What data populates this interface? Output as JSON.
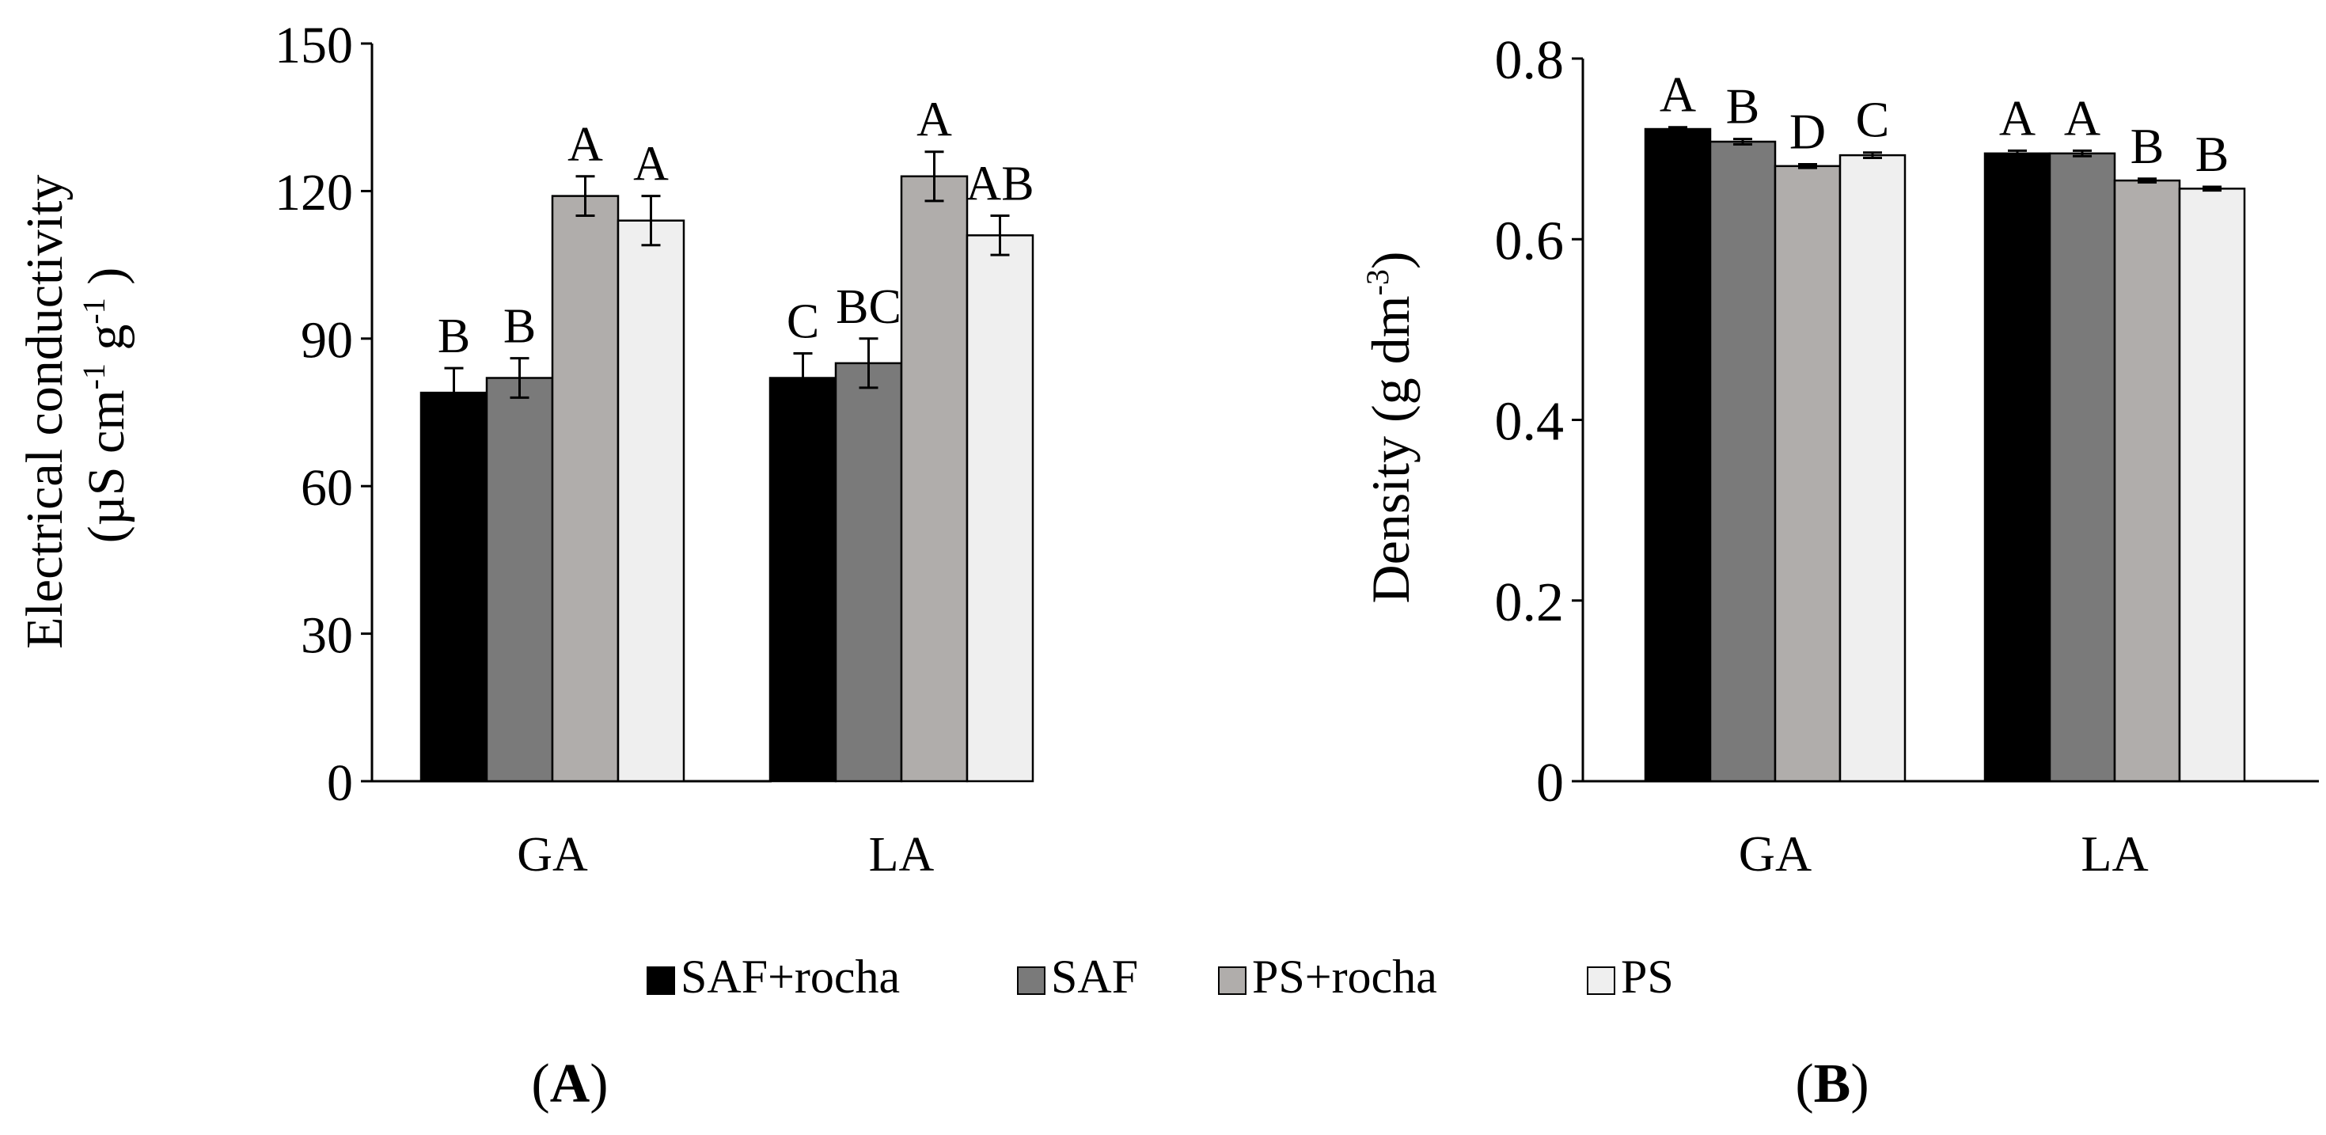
{
  "figure": {
    "legend": [
      {
        "name": "SAF+rocha",
        "color": "#000000"
      },
      {
        "name": "SAF",
        "color": "#7a7a7a"
      },
      {
        "name": "PS+rocha",
        "color": "#b0adab"
      },
      {
        "name": "PS",
        "color": "#efefef"
      }
    ]
  },
  "chart_data": [
    {
      "type": "bar",
      "panel_label": "A",
      "title": "",
      "ylabel_line1": "Electrical conductivity",
      "ylabel_line2_prefix": "(µS cm",
      "ylabel_line2_sup1": "-1",
      "ylabel_line2_mid": " g",
      "ylabel_line2_sup2": "-1",
      "ylabel_line2_suffix": " )",
      "xlabel": "",
      "categories": [
        "GA",
        "LA"
      ],
      "ylim": [
        0,
        150
      ],
      "yticks": [
        0,
        30,
        60,
        90,
        120,
        150
      ],
      "ytick_labels": [
        "0",
        "30",
        "60",
        "90",
        "120",
        "150"
      ],
      "series": [
        {
          "name": "SAF+rocha",
          "values": [
            79,
            82
          ],
          "errors": [
            5,
            5
          ],
          "letters": [
            "B",
            "C"
          ]
        },
        {
          "name": "SAF",
          "values": [
            82,
            85
          ],
          "errors": [
            4,
            5
          ],
          "letters": [
            "B",
            "BC"
          ]
        },
        {
          "name": "PS+rocha",
          "values": [
            119,
            123
          ],
          "errors": [
            4,
            5
          ],
          "letters": [
            "A",
            "A"
          ]
        },
        {
          "name": "PS",
          "values": [
            114,
            111
          ],
          "errors": [
            5,
            4
          ],
          "letters": [
            "A",
            "AB"
          ]
        }
      ]
    },
    {
      "type": "bar",
      "panel_label": "B",
      "title": "",
      "ylabel_prefix": "Density (g dm",
      "ylabel_sup": "-3",
      "ylabel_suffix": ")",
      "xlabel": "",
      "categories": [
        "GA",
        "LA"
      ],
      "ylim": [
        0,
        0.8
      ],
      "yticks": [
        0,
        0.2,
        0.4,
        0.6,
        0.8
      ],
      "ytick_labels": [
        "0",
        "0.2",
        "0.4",
        "0.6",
        "0.8"
      ],
      "series": [
        {
          "name": "SAF+rocha",
          "values": [
            0.722,
            0.695
          ],
          "errors": [
            0.002,
            0.003
          ],
          "letters": [
            "A",
            "A"
          ]
        },
        {
          "name": "SAF",
          "values": [
            0.708,
            0.695
          ],
          "errors": [
            0.003,
            0.003
          ],
          "letters": [
            "B",
            "A"
          ]
        },
        {
          "name": "PS+rocha",
          "values": [
            0.681,
            0.665
          ],
          "errors": [
            0.002,
            0.002
          ],
          "letters": [
            "D",
            "B"
          ]
        },
        {
          "name": "PS",
          "values": [
            0.693,
            0.656
          ],
          "errors": [
            0.003,
            0.002
          ],
          "letters": [
            "C",
            "B"
          ]
        }
      ]
    }
  ]
}
